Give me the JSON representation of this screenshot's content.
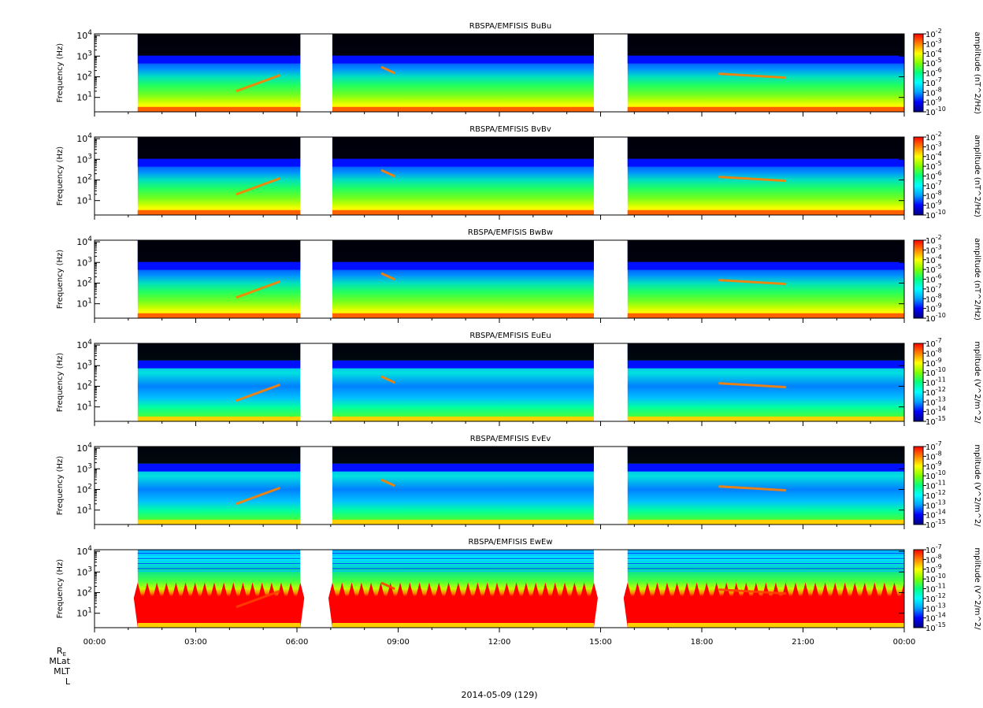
{
  "date_label": "2014-05-09 (129)",
  "ephemeris_labels": [
    "R",
    "MLat",
    "MLT",
    "L"
  ],
  "ephemeris_subscript": "E",
  "colormap": [
    "#000080",
    "#0000ff",
    "#00a0ff",
    "#00ffff",
    "#00ff80",
    "#80ff00",
    "#ffff00",
    "#ff8000",
    "#ff0000"
  ],
  "chart_data": {
    "type": "heatmap",
    "x_range": [
      "2014-05-09T00:00",
      "2014-05-10T00:00"
    ],
    "x_ticks": [
      "00:00",
      "03:00",
      "06:00",
      "09:00",
      "12:00",
      "15:00",
      "18:00",
      "21:00",
      "00:00"
    ],
    "y_scale": "log",
    "y_range_hz": [
      2,
      12000
    ],
    "y_ticks": [
      "10^1",
      "10^2",
      "10^3",
      "10^4"
    ],
    "data_gaps_hours": [
      [
        0.0,
        1.28
      ],
      [
        6.1,
        7.05
      ],
      [
        14.8,
        15.8
      ]
    ],
    "panels": [
      {
        "title": "RBSPA/EMFISIS  BuBu",
        "ylabel": "Frequency (Hz)",
        "zlabel": "amplitude (nT^2/Hz)",
        "z_ticks": [
          "10^-2",
          "10^-3",
          "10^-4",
          "10^-5",
          "10^-6",
          "10^-7",
          "10^-8",
          "10^-9",
          "10^-10"
        ],
        "kind": "B"
      },
      {
        "title": "RBSPA/EMFISIS  BvBv",
        "ylabel": "Frequency (Hz)",
        "zlabel": "amplitude (nT^2/Hz)",
        "z_ticks": [
          "10^-2",
          "10^-3",
          "10^-4",
          "10^-5",
          "10^-6",
          "10^-7",
          "10^-8",
          "10^-9",
          "10^-10"
        ],
        "kind": "B"
      },
      {
        "title": "RBSPA/EMFISIS  BwBw",
        "ylabel": "Frequency (Hz)",
        "zlabel": "amplitude (nT^2/Hz)",
        "z_ticks": [
          "10^-2",
          "10^-3",
          "10^-4",
          "10^-5",
          "10^-6",
          "10^-7",
          "10^-8",
          "10^-9",
          "10^-10"
        ],
        "kind": "B"
      },
      {
        "title": "RBSPA/EMFISIS  EuEu",
        "ylabel": "Frequency (Hz)",
        "zlabel": "mplitude (V^2/m^2/",
        "z_ticks": [
          "10^-7",
          "10^-8",
          "10^-9",
          "10^-10",
          "10^-11",
          "10^-12",
          "10^-13",
          "10^-14",
          "10^-15"
        ],
        "kind": "E"
      },
      {
        "title": "RBSPA/EMFISIS  EvEv",
        "ylabel": "Frequency (Hz)",
        "zlabel": "mplitude (V^2/m^2/",
        "z_ticks": [
          "10^-7",
          "10^-8",
          "10^-9",
          "10^-10",
          "10^-11",
          "10^-12",
          "10^-13",
          "10^-14",
          "10^-15"
        ],
        "kind": "E"
      },
      {
        "title": "RBSPA/EMFISIS  EwEw",
        "ylabel": "Frequency (Hz)",
        "zlabel": "mplitude (V^2/m^2/",
        "z_ticks": [
          "10^-7",
          "10^-8",
          "10^-9",
          "10^-10",
          "10^-11",
          "10^-12",
          "10^-13",
          "10^-14",
          "10^-15"
        ],
        "kind": "Ew"
      }
    ]
  }
}
